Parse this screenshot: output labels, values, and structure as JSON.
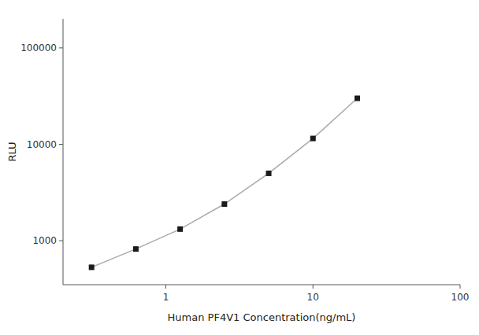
{
  "chart_data": {
    "type": "line",
    "x_label": "Human PF4V1 Concentration(ng/mL)",
    "y_label": "RLU",
    "x": [
      0.3125,
      0.625,
      1.25,
      2.5,
      5,
      10,
      20
    ],
    "values": [
      530,
      820,
      1320,
      2400,
      5000,
      11500,
      30000
    ],
    "xlim": [
      0.2,
      100
    ],
    "ylim": [
      350,
      200000
    ],
    "xticks": [
      1,
      10,
      100
    ],
    "yticks": [
      1000,
      10000,
      100000
    ],
    "log": true,
    "grid": false,
    "color": "#aaaaaa",
    "marker": "square"
  }
}
